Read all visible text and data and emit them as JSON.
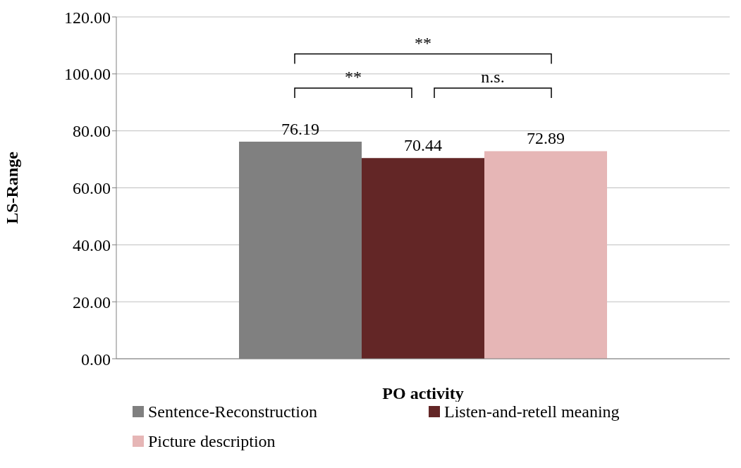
{
  "chart_data": {
    "type": "bar",
    "xlabel": "PO activity",
    "ylabel": "LS-Range",
    "categories": [
      null
    ],
    "series": [
      {
        "name": "Sentence-Reconstruction",
        "color": "#808080",
        "values": [
          76.19
        ]
      },
      {
        "name": "Listen-and-retell meaning",
        "color": "#632626",
        "values": [
          70.44
        ]
      },
      {
        "name": "Picture description",
        "color": "#e6b6b6",
        "values": [
          72.89
        ]
      }
    ],
    "ylim": [
      0,
      120
    ],
    "yticks": [
      {
        "value": 0,
        "label": "0.00"
      },
      {
        "value": 20,
        "label": "20.00"
      },
      {
        "value": 40,
        "label": "40.00"
      },
      {
        "value": 60,
        "label": "60.00"
      },
      {
        "value": 80,
        "label": "80.00"
      },
      {
        "value": 100,
        "label": "100.00"
      },
      {
        "value": 120,
        "label": "120.00"
      }
    ],
    "grid": "y",
    "legend": "bottom",
    "data_labels": true,
    "annotations": [
      "**",
      "**",
      "n.s."
    ]
  }
}
